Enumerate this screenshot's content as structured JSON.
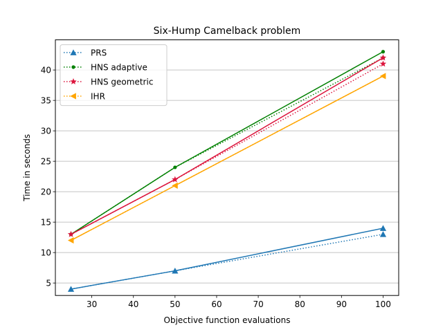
{
  "chart_data": {
    "type": "line",
    "title": "Six-Hump Camelback problem",
    "xlabel": "Objective function evaluations",
    "ylabel": "Time in seconds",
    "xlim": [
      21.25,
      103.75
    ],
    "ylim": [
      2.95,
      44.95
    ],
    "xticks": [
      30,
      40,
      50,
      60,
      70,
      80,
      90,
      100
    ],
    "yticks": [
      5,
      10,
      15,
      20,
      25,
      30,
      35,
      40
    ],
    "grid": "horizontal",
    "legend_position": "top-left",
    "x": [
      25,
      50,
      100
    ],
    "series": [
      {
        "name": "PRS",
        "color": "#1f77b4",
        "marker": "triangle-up",
        "dotted": [
          4,
          7,
          13
        ],
        "solid": [
          4,
          7,
          14
        ]
      },
      {
        "name": "HNS adaptive",
        "color": "#008000",
        "marker": "dot",
        "dotted": [
          13,
          24,
          42
        ],
        "solid": [
          13,
          24,
          43
        ]
      },
      {
        "name": "HNS geometric",
        "color": "#dc143c",
        "marker": "star",
        "dotted": [
          13,
          22,
          41
        ],
        "solid": [
          13,
          22,
          42
        ]
      },
      {
        "name": "IHR",
        "color": "#ffa500",
        "marker": "triangle-left",
        "dotted": [
          12,
          21,
          39
        ],
        "solid": [
          12,
          21,
          39
        ]
      }
    ]
  }
}
